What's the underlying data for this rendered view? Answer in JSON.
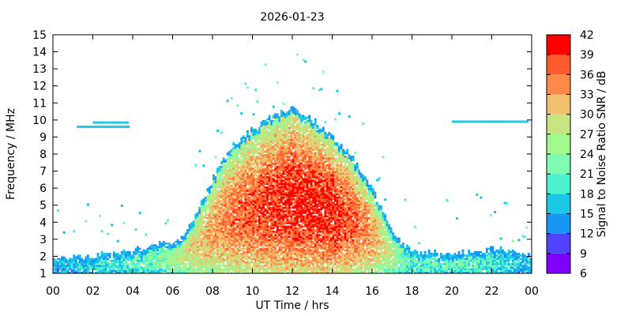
{
  "chart_data": {
    "type": "heatmap",
    "title": "2026-01-23",
    "xlabel": "UT Time / hrs",
    "ylabel": "Frequency / MHz",
    "x_ticks": [
      "00",
      "02",
      "04",
      "06",
      "08",
      "10",
      "12",
      "14",
      "16",
      "18",
      "20",
      "22",
      "00"
    ],
    "x_range_hours": [
      0,
      24
    ],
    "y_ticks": [
      "1",
      "2",
      "3",
      "4",
      "5",
      "6",
      "7",
      "8",
      "9",
      "10",
      "11",
      "12",
      "13",
      "14",
      "15"
    ],
    "ylim": [
      1,
      15
    ],
    "colorbar": {
      "label": "Signal to Noise Ratio SNR / dB",
      "ticks": [
        "6",
        "9",
        "12",
        "15",
        "18",
        "21",
        "24",
        "27",
        "30",
        "33",
        "36",
        "39",
        "42"
      ],
      "range": [
        6,
        42
      ],
      "bins": [
        {
          "from": 6,
          "to": 9,
          "color": "#8000ff"
        },
        {
          "from": 9,
          "to": 12,
          "color": "#4f44fc"
        },
        {
          "from": 12,
          "to": 15,
          "color": "#1996f3"
        },
        {
          "from": 15,
          "to": 18,
          "color": "#1ac7e5"
        },
        {
          "from": 18,
          "to": 21,
          "color": "#4cf2ce"
        },
        {
          "from": 21,
          "to": 24,
          "color": "#7ffcb2"
        },
        {
          "from": 24,
          "to": 27,
          "color": "#a1f88c"
        },
        {
          "from": 27,
          "to": 30,
          "color": "#c8e480"
        },
        {
          "from": 30,
          "to": 33,
          "color": "#f3c070"
        },
        {
          "from": 33,
          "to": 36,
          "color": "#ff8a4a"
        },
        {
          "from": 36,
          "to": 39,
          "color": "#ff5a2e"
        },
        {
          "from": 39,
          "to": 42,
          "color": "#ff0000"
        }
      ]
    },
    "approx_upper_edge_mhz_by_hour": [
      {
        "hour": 0,
        "f": 1.8
      },
      {
        "hour": 2,
        "f": 2.0
      },
      {
        "hour": 4,
        "f": 2.3
      },
      {
        "hour": 5.5,
        "f": 2.7
      },
      {
        "hour": 6.5,
        "f": 3.0
      },
      {
        "hour": 7,
        "f": 4.0
      },
      {
        "hour": 8,
        "f": 6.5
      },
      {
        "hour": 9,
        "f": 8.5
      },
      {
        "hour": 10,
        "f": 9.4
      },
      {
        "hour": 11,
        "f": 10.2
      },
      {
        "hour": 12,
        "f": 10.7
      },
      {
        "hour": 13,
        "f": 10.0
      },
      {
        "hour": 14,
        "f": 9.0
      },
      {
        "hour": 15,
        "f": 7.8
      },
      {
        "hour": 16,
        "f": 6.0
      },
      {
        "hour": 17,
        "f": 3.5
      },
      {
        "hour": 18,
        "f": 2.2
      },
      {
        "hour": 20,
        "f": 2.1
      },
      {
        "hour": 22,
        "f": 2.4
      },
      {
        "hour": 24,
        "f": 2.0
      }
    ],
    "approx_peak_snr_db_by_hour": [
      {
        "hour": 0,
        "snr": 15
      },
      {
        "hour": 2,
        "snr": 18
      },
      {
        "hour": 5,
        "snr": 22
      },
      {
        "hour": 7,
        "snr": 30
      },
      {
        "hour": 9,
        "snr": 36
      },
      {
        "hour": 12,
        "snr": 40
      },
      {
        "hour": 14,
        "snr": 40
      },
      {
        "hour": 16,
        "snr": 34
      },
      {
        "hour": 18,
        "snr": 20
      },
      {
        "hour": 21,
        "snr": 22
      },
      {
        "hour": 24,
        "snr": 16
      }
    ],
    "steady_carriers": [
      {
        "f_mhz": 9.6,
        "hour_from": 1.2,
        "hour_to": 3.8,
        "snr": 15
      },
      {
        "f_mhz": 9.85,
        "hour_from": 2.0,
        "hour_to": 3.8,
        "snr": 15
      },
      {
        "f_mhz": 9.9,
        "hour_from": 20.0,
        "hour_to": 23.8,
        "snr": 15
      }
    ]
  }
}
